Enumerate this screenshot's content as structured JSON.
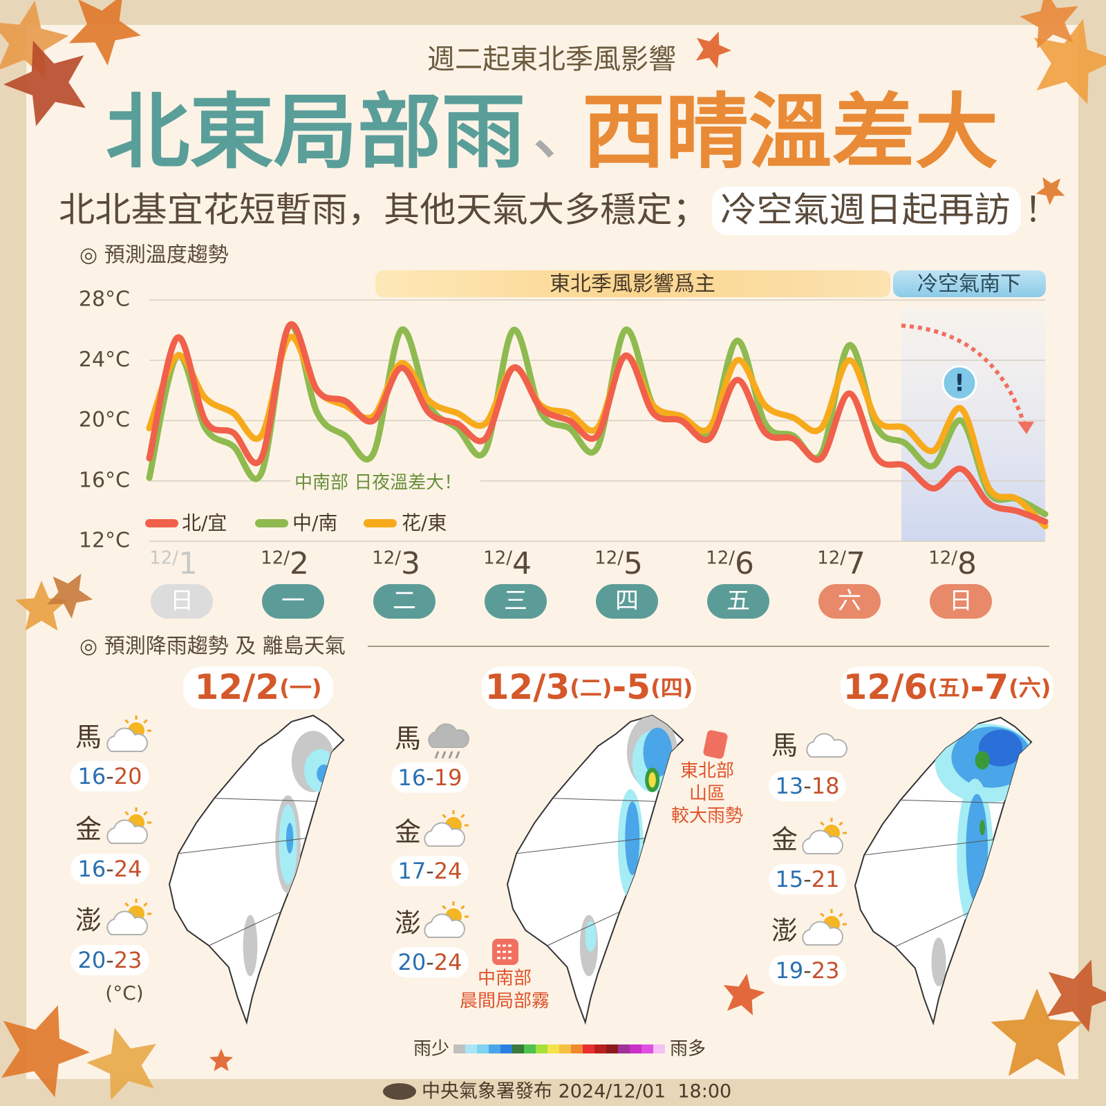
{
  "header": {
    "subtitle": "週二起東北季風影響",
    "title_left": "北東局部雨",
    "title_sep": "、",
    "title_right": "西晴溫差大",
    "tagline": "北北基宜花短暫雨，其他天氣大多穩定；",
    "tagline_highlight": "冷空氣週日起再訪",
    "tagline_end": "！"
  },
  "temperature_section": {
    "heading": "◎ 預測溫度趨勢"
  },
  "chart_data": {
    "type": "line",
    "periods": [
      {
        "label": "東北季風影響爲主"
      },
      {
        "label": "冷空氣南下"
      }
    ],
    "annotation": "中南部 日夜溫差大！",
    "alert": "!",
    "ylim": [
      12,
      28
    ],
    "yticks": [
      {
        "value": 12,
        "label": "12°C"
      },
      {
        "value": 16,
        "label": "16°C"
      },
      {
        "value": 20,
        "label": "20°C"
      },
      {
        "value": 24,
        "label": "24°C"
      },
      {
        "value": 28,
        "label": "28°C"
      }
    ],
    "grid": true,
    "series": [
      {
        "name": "北/宜",
        "color": "#f0604a",
        "values": [
          17.5,
          25.5,
          20.0,
          19.2,
          17.5,
          26.3,
          22.0,
          21.3,
          20.0,
          23.5,
          20.5,
          19.8,
          18.8,
          23.5,
          20.8,
          20.0,
          19.0,
          24.3,
          20.5,
          20.0,
          18.8,
          22.7,
          19.2,
          18.8,
          17.5,
          21.8,
          17.5,
          17.0,
          15.5,
          16.8,
          14.5,
          14.0,
          13.3
        ]
      },
      {
        "name": "中/南",
        "color": "#8fba4f",
        "values": [
          16.2,
          24.3,
          19.5,
          18.3,
          16.5,
          26.3,
          20.5,
          19.0,
          17.8,
          26.0,
          21.0,
          19.5,
          18.0,
          26.0,
          20.5,
          19.5,
          18.2,
          26.0,
          21.0,
          20.0,
          19.2,
          25.3,
          19.8,
          19.0,
          17.8,
          25.0,
          19.5,
          18.5,
          17.0,
          20.0,
          15.2,
          14.8,
          13.8
        ]
      },
      {
        "name": "花/東",
        "color": "#f7aa1c",
        "values": [
          19.5,
          24.3,
          21.5,
          20.5,
          19.0,
          25.5,
          22.0,
          21.0,
          20.3,
          23.8,
          21.3,
          20.5,
          19.8,
          23.5,
          21.0,
          20.5,
          19.5,
          24.3,
          21.0,
          20.3,
          19.5,
          24.0,
          21.0,
          20.2,
          19.5,
          24.0,
          20.0,
          19.5,
          18.0,
          20.8,
          15.5,
          14.8,
          13.0
        ]
      }
    ],
    "days": [
      {
        "date_prefix": "12/",
        "date": "1",
        "weekday": "日",
        "color": "#dcdcdc"
      },
      {
        "date_prefix": "12/",
        "date": "2",
        "weekday": "一",
        "color": "#5c9c98"
      },
      {
        "date_prefix": "12/",
        "date": "3",
        "weekday": "二",
        "color": "#5c9c98"
      },
      {
        "date_prefix": "12/",
        "date": "4",
        "weekday": "三",
        "color": "#5c9c98"
      },
      {
        "date_prefix": "12/",
        "date": "5",
        "weekday": "四",
        "color": "#5c9c98"
      },
      {
        "date_prefix": "12/",
        "date": "6",
        "weekday": "五",
        "color": "#5c9c98"
      },
      {
        "date_prefix": "12/",
        "date": "7",
        "weekday": "六",
        "color": "#e8896a"
      },
      {
        "date_prefix": "12/",
        "date": "8",
        "weekday": "日",
        "color": "#e8896a"
      }
    ]
  },
  "rain_section": {
    "heading": "◎ 預測降雨趨勢 及 離島天氣",
    "unit": "(°C)",
    "range_separator": "-",
    "panels": [
      {
        "title_parts": [
          "12/2",
          "(一)"
        ],
        "islands": [
          {
            "name": "馬",
            "low": 16,
            "high": 20
          },
          {
            "name": "金",
            "low": 16,
            "high": 24
          },
          {
            "name": "澎",
            "low": 20,
            "high": 23
          }
        ]
      },
      {
        "title_parts": [
          "12/3",
          "(二)",
          "-5",
          "(四)"
        ],
        "islands": [
          {
            "name": "馬",
            "low": 16,
            "high": 19
          },
          {
            "name": "金",
            "low": 17,
            "high": 24
          },
          {
            "name": "澎",
            "low": 20,
            "high": 24
          }
        ]
      },
      {
        "title_parts": [
          "12/6",
          "(五)",
          "-7",
          "(六)"
        ],
        "islands": [
          {
            "name": "馬",
            "low": 13,
            "high": 18
          },
          {
            "name": "金",
            "low": 15,
            "high": 21
          },
          {
            "name": "澎",
            "low": 19,
            "high": 23
          }
        ]
      }
    ],
    "notes": [
      {
        "lines": [
          "東北部",
          "山區",
          "較大雨勢"
        ]
      },
      {
        "lines": [
          "中南部",
          "晨間局部霧"
        ]
      }
    ],
    "legend_low": "雨少",
    "legend_high": "雨多"
  },
  "footer": {
    "publisher": "中央氣象署發布 2024/12/01  18:00"
  }
}
